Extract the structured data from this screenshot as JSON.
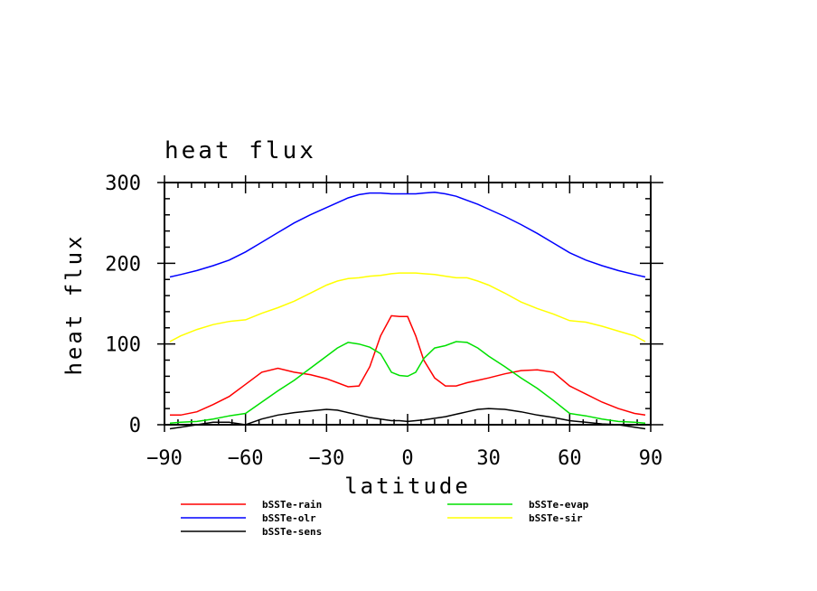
{
  "chart_data": {
    "type": "line",
    "title": "heat flux",
    "xlabel": "latitude",
    "ylabel": "heat flux",
    "xlim": [
      -90,
      90
    ],
    "ylim": [
      0,
      300
    ],
    "xticks": [
      -90,
      -60,
      -30,
      0,
      30,
      60,
      90
    ],
    "yticks": [
      0,
      100,
      200,
      300
    ],
    "xtick_labels": [
      "−90",
      "−60",
      "−30",
      "0",
      "30",
      "60",
      "90"
    ],
    "ytick_labels": [
      "0",
      "100",
      "200",
      "300"
    ],
    "grid": false,
    "legend_position": "bottom",
    "x": [
      -88,
      -84,
      -78,
      -72,
      -66,
      -60,
      -54,
      -48,
      -42,
      -36,
      -30,
      -26,
      -22,
      -18,
      -14,
      -10,
      -6,
      -3,
      0,
      3,
      6,
      10,
      14,
      18,
      22,
      26,
      30,
      36,
      42,
      48,
      54,
      60,
      66,
      72,
      78,
      84,
      88
    ],
    "series": [
      {
        "name": "bSSTe-rain",
        "color": "#ff0000",
        "values": [
          12,
          12,
          16,
          25,
          35,
          50,
          65,
          70,
          65,
          62,
          57,
          52,
          47,
          48,
          72,
          110,
          135,
          134,
          134,
          110,
          80,
          58,
          48,
          48,
          52,
          55,
          58,
          63,
          67,
          68,
          65,
          48,
          38,
          28,
          20,
          14,
          12
        ]
      },
      {
        "name": "bSSTe-olr",
        "color": "#0000ff",
        "values": [
          183,
          186,
          191,
          197,
          204,
          214,
          226,
          238,
          250,
          260,
          269,
          275,
          281,
          285,
          287,
          287,
          286,
          286,
          286,
          286,
          287,
          288,
          286,
          283,
          278,
          273,
          267,
          258,
          248,
          237,
          225,
          213,
          204,
          197,
          191,
          186,
          183
        ]
      },
      {
        "name": "bSSTe-sens",
        "color": "#000000",
        "values": [
          -5,
          -3,
          0,
          3,
          3,
          0,
          7,
          12,
          15,
          17,
          19,
          18,
          15,
          12,
          9,
          7,
          5,
          5,
          4,
          5,
          6,
          8,
          10,
          13,
          16,
          19,
          20,
          19,
          16,
          12,
          9,
          5,
          3,
          1,
          0,
          -3,
          -5
        ]
      },
      {
        "name": "bSSTe-evap",
        "color": "#00e000",
        "values": [
          2,
          3,
          4,
          7,
          11,
          14,
          28,
          42,
          55,
          70,
          85,
          95,
          102,
          100,
          96,
          88,
          65,
          61,
          60,
          65,
          82,
          95,
          98,
          103,
          102,
          95,
          85,
          72,
          58,
          45,
          30,
          14,
          11,
          7,
          4,
          3,
          2
        ]
      },
      {
        "name": "bSSTe-sir",
        "color": "#ffff00",
        "values": [
          103,
          110,
          118,
          124,
          128,
          130,
          138,
          145,
          153,
          163,
          173,
          178,
          181,
          182,
          184,
          185,
          187,
          188,
          188,
          188,
          187,
          186,
          184,
          182,
          182,
          178,
          173,
          163,
          152,
          144,
          137,
          129,
          127,
          122,
          116,
          110,
          103
        ]
      }
    ]
  }
}
